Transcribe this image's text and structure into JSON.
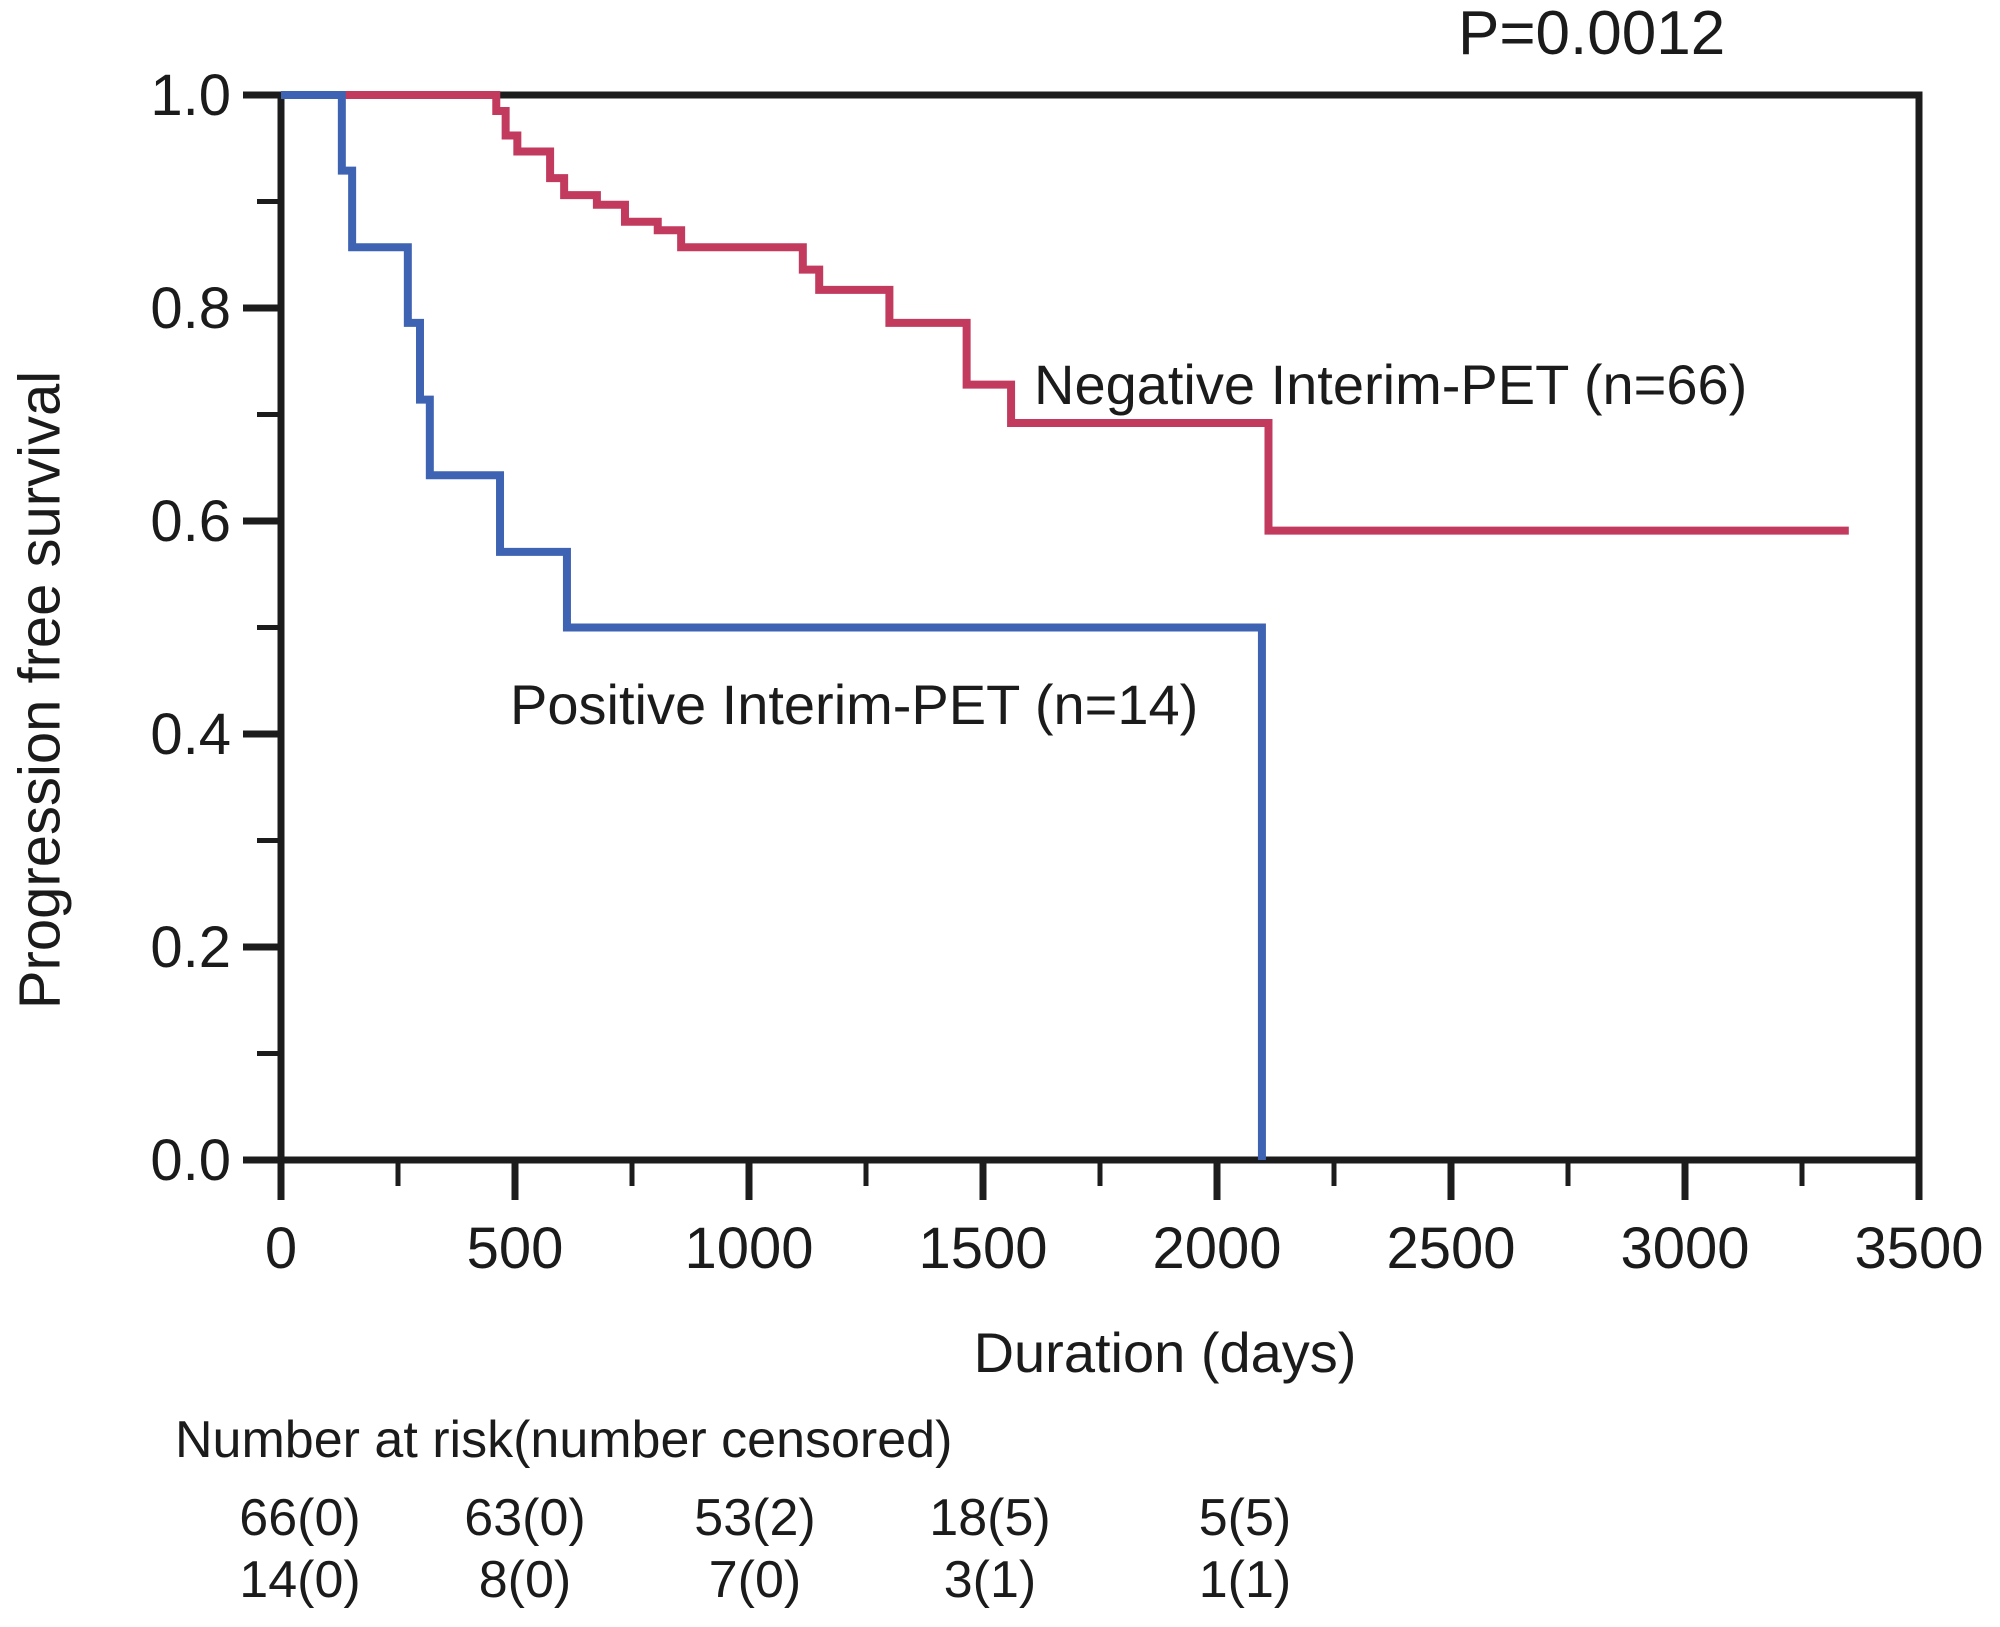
{
  "annotations": {
    "p_value": "P=0.0012"
  },
  "axes": {
    "x": {
      "label": "Duration (days)",
      "range": [
        0,
        3500
      ],
      "major_ticks": [
        {
          "value": 0,
          "label": "0"
        },
        {
          "value": 500,
          "label": "500"
        },
        {
          "value": 1000,
          "label": "1000"
        },
        {
          "value": 1500,
          "label": "1500"
        },
        {
          "value": 2000,
          "label": "2000"
        },
        {
          "value": 2500,
          "label": "2500"
        },
        {
          "value": 3000,
          "label": "3000"
        },
        {
          "value": 3500,
          "label": "3500"
        }
      ],
      "minor_tick_values": [
        250,
        750,
        1250,
        1750,
        2250,
        2750,
        3250
      ]
    },
    "y": {
      "label": "Progression free survival",
      "range": [
        0,
        1
      ],
      "major_ticks": [
        {
          "value": 1.0,
          "label": "1.0"
        },
        {
          "value": 0.8,
          "label": "0.8"
        },
        {
          "value": 0.6,
          "label": "0.6"
        },
        {
          "value": 0.4,
          "label": "0.4"
        },
        {
          "value": 0.2,
          "label": "0.2"
        },
        {
          "value": 0.0,
          "label": "0.0"
        }
      ],
      "minor_tick_values": [
        0.9,
        0.7,
        0.5,
        0.3,
        0.1
      ]
    }
  },
  "chart_data": {
    "type": "line",
    "subtype": "kaplan-meier-step-curves",
    "title": "",
    "xlabel": "Duration (days)",
    "ylabel": "Progression free survival",
    "xlim": [
      0,
      3500
    ],
    "ylim": [
      0.0,
      1.0
    ],
    "grid": false,
    "legend_position": "inline-labels",
    "p_value": "P=0.0012",
    "series": [
      {
        "name": "Negative Interim-PET (n=66)",
        "n": 66,
        "color": "#c23a5e",
        "start": [
          0,
          1.0
        ],
        "steps": [
          [
            460,
            0.985
          ],
          [
            480,
            0.962
          ],
          [
            505,
            0.947
          ],
          [
            575,
            0.922
          ],
          [
            605,
            0.906
          ],
          [
            675,
            0.897
          ],
          [
            735,
            0.881
          ],
          [
            805,
            0.873
          ],
          [
            855,
            0.857
          ],
          [
            1115,
            0.836
          ],
          [
            1150,
            0.817
          ],
          [
            1300,
            0.786
          ],
          [
            1465,
            0.728
          ],
          [
            1560,
            0.692
          ],
          [
            2110,
            0.591
          ]
        ],
        "end_day": 3350,
        "final_survival": 0.591
      },
      {
        "name": "Positive Interim-PET (n=14)",
        "n": 14,
        "color": "#3f63b3",
        "start": [
          0,
          1.0
        ],
        "steps": [
          [
            130,
            0.929
          ],
          [
            152,
            0.857
          ],
          [
            271,
            0.786
          ],
          [
            297,
            0.714
          ],
          [
            318,
            0.643
          ],
          [
            468,
            0.571
          ],
          [
            611,
            0.5
          ],
          [
            2096,
            0.0
          ]
        ],
        "end_day": 2096,
        "final_survival": 0.0
      }
    ]
  },
  "risk_table": {
    "header": "Number at risk(number censored)",
    "time_points": [
      0,
      500,
      1000,
      1500,
      2000
    ],
    "rows": [
      {
        "series": "Negative Interim-PET",
        "values": [
          "66(0)",
          "63(0)",
          "53(2)",
          "18(5)",
          "5(5)"
        ]
      },
      {
        "series": "Positive Interim-PET",
        "values": [
          "14(0)",
          "8(0)",
          "7(0)",
          "3(1)",
          "1(1)"
        ]
      }
    ]
  },
  "style": {
    "axis_color": "#1c1c1c",
    "background": "#ffffff"
  }
}
